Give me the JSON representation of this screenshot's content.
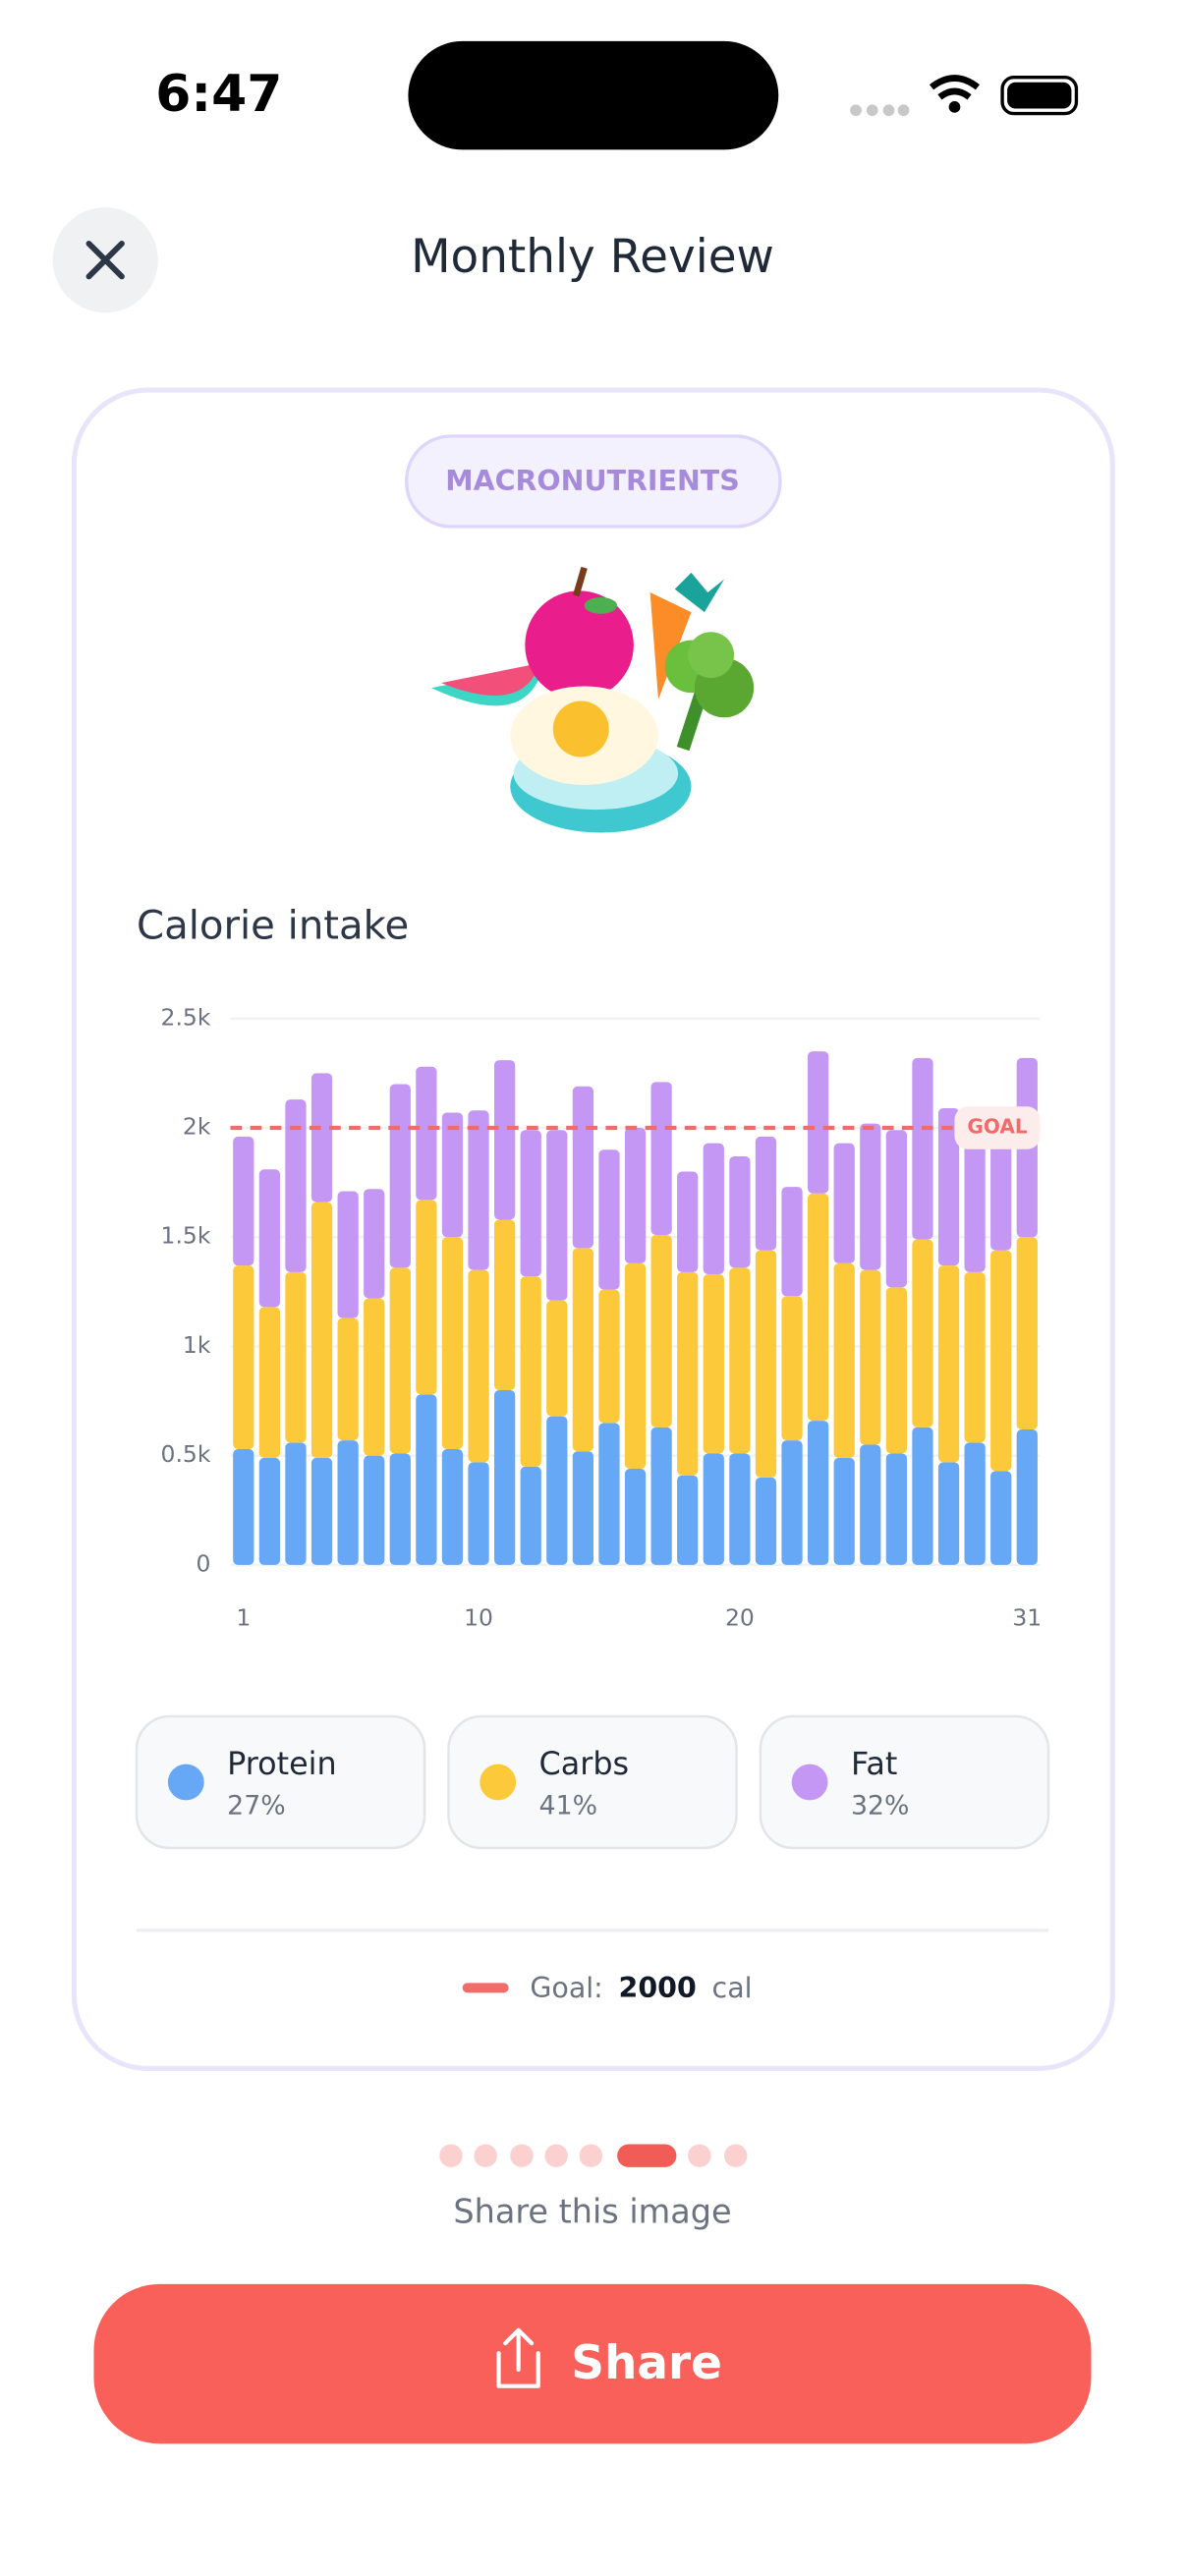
{
  "status_bar": {
    "time": "6:47"
  },
  "header": {
    "title": "Monthly Review"
  },
  "card": {
    "badge": "MACRONUTRIENTS",
    "footer": {
      "prefix": "Goal:",
      "unit": "cal"
    }
  },
  "chart_data": {
    "type": "stacked_bar",
    "title": "Calorie intake",
    "categories": [
      "1",
      null,
      null,
      null,
      null,
      null,
      null,
      null,
      null,
      "10",
      null,
      null,
      null,
      null,
      null,
      null,
      null,
      null,
      null,
      "20",
      null,
      null,
      null,
      null,
      null,
      null,
      null,
      null,
      null,
      null,
      "31"
    ],
    "series": [
      {
        "name": "Protein",
        "share": "27%",
        "color": "#66a8f5",
        "values": [
          530,
          490,
          560,
          490,
          570,
          500,
          510,
          780,
          530,
          470,
          800,
          450,
          680,
          520,
          650,
          440,
          630,
          410,
          510,
          510,
          400,
          570,
          660,
          490,
          550,
          510,
          630,
          470,
          560,
          430,
          620
        ]
      },
      {
        "name": "Carbs",
        "share": "41%",
        "color": "#fcc93a",
        "values": [
          840,
          690,
          780,
          1170,
          560,
          720,
          850,
          890,
          970,
          880,
          780,
          870,
          530,
          930,
          610,
          940,
          880,
          930,
          820,
          850,
          1040,
          660,
          1040,
          890,
          800,
          760,
          860,
          900,
          780,
          1010,
          880
        ]
      },
      {
        "name": "Fat",
        "share": "32%",
        "color": "#c597f5",
        "values": [
          590,
          630,
          790,
          590,
          580,
          500,
          840,
          610,
          570,
          730,
          730,
          670,
          780,
          740,
          640,
          620,
          700,
          460,
          600,
          510,
          520,
          500,
          650,
          550,
          670,
          720,
          830,
          720,
          610,
          550,
          820
        ]
      }
    ],
    "ylim": [
      0,
      2500
    ],
    "yticks": [
      0,
      {
        "value": 500,
        "label": "0.5k"
      },
      {
        "value": 1000,
        "label": "1k"
      },
      {
        "value": 1500,
        "label": "1.5k"
      },
      {
        "value": 2000,
        "label": "2k"
      },
      {
        "value": 2500,
        "label": "2.5k"
      }
    ],
    "grid": true,
    "goal": 2000,
    "goal_label": "GOAL",
    "goal_color": "#f26b6b"
  },
  "caption": "Share this image",
  "button": {
    "label": "Share"
  }
}
